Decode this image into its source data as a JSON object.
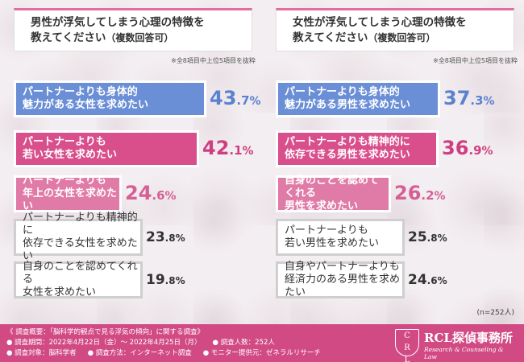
{
  "colors": {
    "blue": "#6b8fd6",
    "magenta": "#d94f8c",
    "pink": "#e07aa6",
    "plain_text": "#333333",
    "blue_text": "#5a82cf",
    "magenta_text": "#cf3f80",
    "pink_text": "#d65f95"
  },
  "panels": [
    {
      "title_line1": "男性が浮気してしまう心理の特徴を",
      "title_line2": "教えてください",
      "title_sub": "（複数回答可）",
      "note": "※全8項目中上位5項目を抜粋"
    },
    {
      "title_line1": "女性が浮気してしまう心理の特徴を",
      "title_line2": "教えてください",
      "title_sub": "（複数回答可）",
      "note": "※全8項目中上位5項目を抜粋"
    }
  ],
  "chart_data": [
    {
      "type": "bar",
      "title": "男性が浮気してしまう心理の特徴を教えてください（複数回答可）",
      "categories": [
        "パートナーよりも身体的\n魅力がある女性を求めたい",
        "パートナーよりも\n若い女性を求めたい",
        "パートナーよりも\n年上の女性を求めたい",
        "パートナーよりも精神的に\n依存できる女性を求めたい",
        "自身のことを認めてくれる\n女性を求めたい"
      ],
      "values": [
        43.7,
        42.1,
        24.6,
        23.8,
        19.8
      ],
      "value_labels": [
        {
          "int": "43",
          "dec": ".7",
          "unit": "%"
        },
        {
          "int": "42",
          "dec": ".1",
          "unit": "%"
        },
        {
          "int": "24",
          "dec": ".6",
          "unit": "%"
        },
        {
          "int": "23",
          "dec": ".8",
          "unit": "%"
        },
        {
          "int": "19",
          "dec": ".8",
          "unit": "%"
        }
      ],
      "styles": [
        "blue",
        "magenta",
        "pink",
        "plain",
        "plain"
      ],
      "xlim": [
        0,
        45
      ]
    },
    {
      "type": "bar",
      "title": "女性が浮気してしまう心理の特徴を教えてください（複数回答可）",
      "categories": [
        "パートナーよりも身体的\n魅力がある男性を求めたい",
        "パートナーよりも精神的に\n依存できる男性を求めたい",
        "自身のことを認めてくれる\n男性を求めたい",
        "パートナーよりも\n若い男性を求めたい",
        "自身やパートナーよりも\n経済力のある男性を求めたい"
      ],
      "values": [
        37.3,
        36.9,
        26.2,
        25.8,
        24.6
      ],
      "value_labels": [
        {
          "int": "37",
          "dec": ".3",
          "unit": "%"
        },
        {
          "int": "36",
          "dec": ".9",
          "unit": "%"
        },
        {
          "int": "26",
          "dec": ".2",
          "unit": "%"
        },
        {
          "int": "25",
          "dec": ".8",
          "unit": "%"
        },
        {
          "int": "24",
          "dec": ".6",
          "unit": "%"
        }
      ],
      "styles": [
        "blue",
        "magenta",
        "pink",
        "plain",
        "plain"
      ],
      "xlim": [
        0,
        45
      ]
    }
  ],
  "n_note": "(n=252人)",
  "footer": {
    "line1": "《 調査概要：「脳科学的観点で見る浮気の傾向」に関する調査》",
    "period": "● 調査期間：2022年4月22日（金）～ 2022年4月25日（月）",
    "count": "● 調査人数：252人",
    "target": "● 調査対象：脳科学者",
    "method": "● 調査方法：インターネット調査",
    "provider": "● モニター提供元：ゼネラルリサーチ"
  },
  "logo": {
    "emblem_top": "C",
    "emblem_mid": "R",
    "emblem_bot": "L",
    "name": "RCL探偵事務所",
    "tagline": "Research & Counseling & Law"
  }
}
